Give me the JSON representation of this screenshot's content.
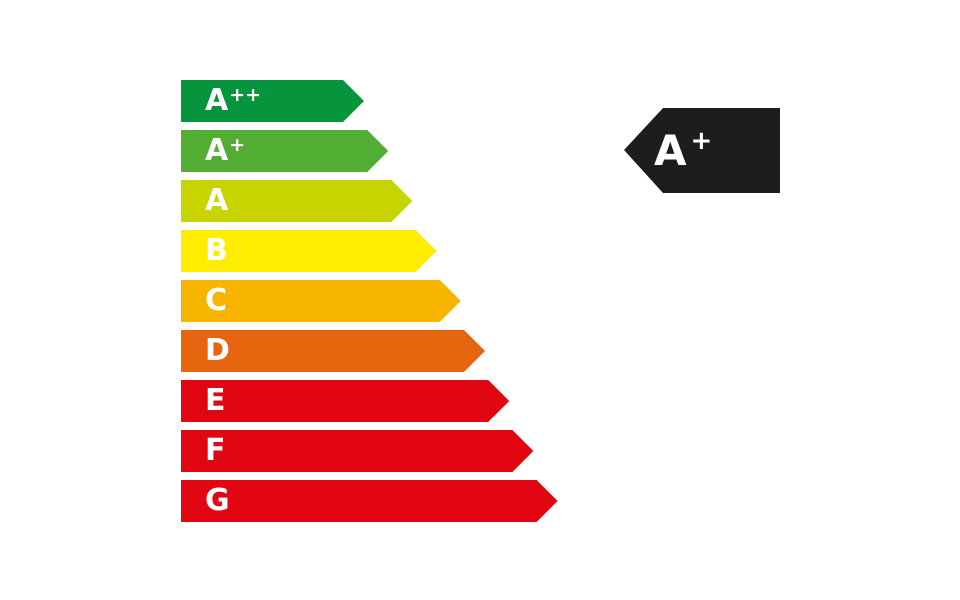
{
  "scale": [
    {
      "letter": "A",
      "sup": "++",
      "color": "#06953d"
    },
    {
      "letter": "A",
      "sup": "+",
      "color": "#52ae32"
    },
    {
      "letter": "A",
      "sup": "",
      "color": "#c8d400"
    },
    {
      "letter": "B",
      "sup": "",
      "color": "#ffed00"
    },
    {
      "letter": "C",
      "sup": "",
      "color": "#f7b500"
    },
    {
      "letter": "D",
      "sup": "",
      "color": "#e7650e"
    },
    {
      "letter": "E",
      "sup": "",
      "color": "#e20613"
    },
    {
      "letter": "F",
      "sup": "",
      "color": "#e20613"
    },
    {
      "letter": "G",
      "sup": "",
      "color": "#e20613"
    }
  ],
  "rating": {
    "letter": "A",
    "sup": "+",
    "color": "#1d1d1b"
  }
}
